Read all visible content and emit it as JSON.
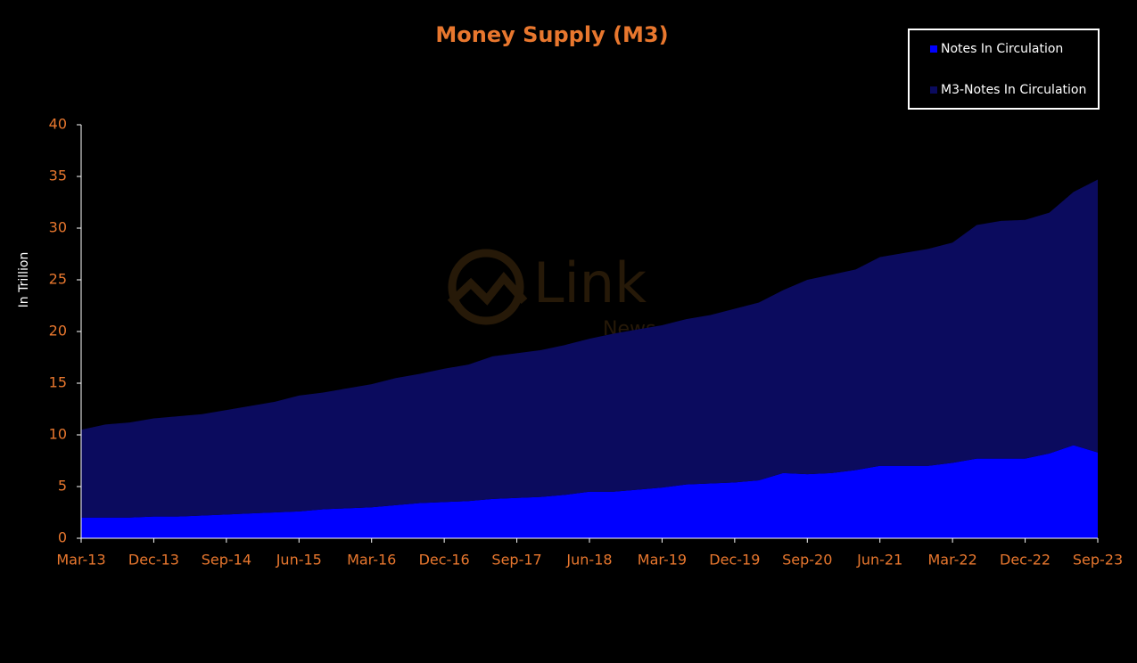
{
  "chart_data": {
    "type": "stacked_area",
    "title": "Money Supply (M3)",
    "y_label": "In Trillion",
    "watermark": [
      "Link",
      "News"
    ],
    "categories": [
      "Mar-13",
      null,
      null,
      "Dec-13",
      null,
      null,
      "Sep-14",
      null,
      null,
      "Jun-15",
      null,
      null,
      "Mar-16",
      null,
      null,
      "Dec-16",
      null,
      null,
      "Sep-17",
      null,
      null,
      "Jun-18",
      null,
      null,
      "Mar-19",
      null,
      null,
      "Dec-19",
      null,
      null,
      "Sep-20",
      null,
      null,
      "Jun-21",
      null,
      null,
      "Mar-22",
      null,
      null,
      "Dec-22",
      null,
      null,
      "Sep-23"
    ],
    "series": [
      {
        "name": "Notes In Circulation",
        "color": "#0000ff",
        "values": [
          2.0,
          2.0,
          2.0,
          2.1,
          2.1,
          2.2,
          2.3,
          2.4,
          2.5,
          2.6,
          2.8,
          2.9,
          3.0,
          3.2,
          3.4,
          3.5,
          3.6,
          3.8,
          3.9,
          4.0,
          4.2,
          4.5,
          4.5,
          4.7,
          4.9,
          5.2,
          5.3,
          5.4,
          5.6,
          6.3,
          6.2,
          6.3,
          6.6,
          7.0,
          7.0,
          7.0,
          7.3,
          7.7,
          7.7,
          7.7,
          8.2,
          9.0,
          8.3
        ]
      },
      {
        "name": "M3-Notes In Circulation",
        "color": "#0b0b5e",
        "values": [
          8.5,
          9.0,
          9.2,
          9.5,
          9.7,
          9.8,
          10.1,
          10.4,
          10.7,
          11.2,
          11.3,
          11.6,
          11.9,
          12.3,
          12.5,
          12.9,
          13.2,
          13.8,
          14.0,
          14.2,
          14.5,
          14.8,
          15.3,
          15.5,
          15.7,
          16.0,
          16.3,
          16.8,
          17.2,
          17.7,
          18.8,
          19.2,
          19.4,
          20.2,
          20.6,
          21.0,
          21.3,
          22.6,
          23.0,
          23.1,
          23.3,
          24.5,
          26.4
        ]
      }
    ],
    "ylim": [
      0,
      40
    ],
    "yticks": [
      0,
      5,
      10,
      15,
      20,
      25,
      30,
      35,
      40
    ],
    "grid": false,
    "legend": "top-right"
  }
}
